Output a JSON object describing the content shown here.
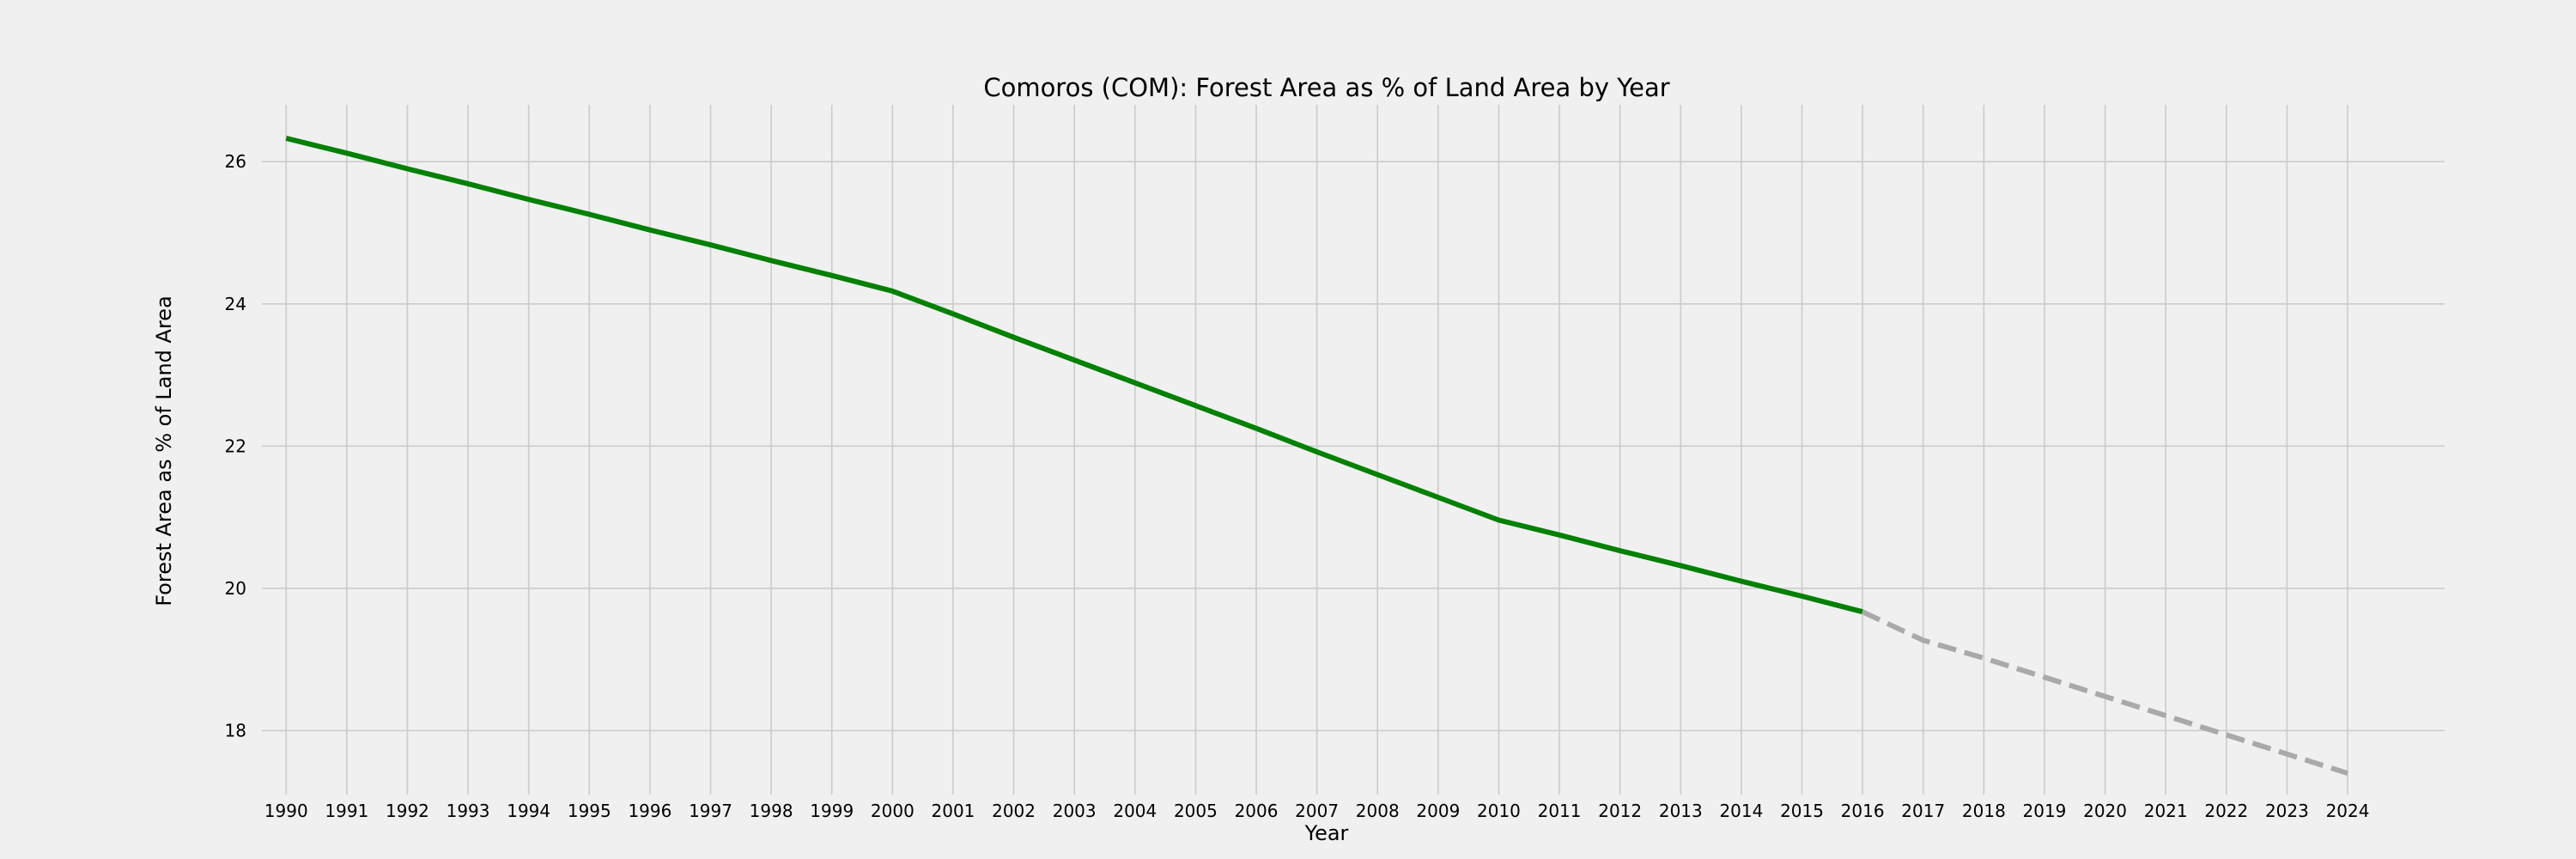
{
  "chart_data": {
    "type": "line",
    "title": "Comoros (COM): Forest Area as % of Land Area by Year",
    "xlabel": "Year",
    "ylabel": "Forest Area as % of Land Area",
    "xlim": [
      1989.6,
      2025.6
    ],
    "ylim": [
      17.1,
      26.8
    ],
    "x_ticks": [
      "1990",
      "1991",
      "1992",
      "1993",
      "1994",
      "1995",
      "1996",
      "1997",
      "1998",
      "1999",
      "2000",
      "2001",
      "2002",
      "2003",
      "2004",
      "2005",
      "2006",
      "2007",
      "2008",
      "2009",
      "2010",
      "2011",
      "2012",
      "2013",
      "2014",
      "2015",
      "2016",
      "2017",
      "2018",
      "2019",
      "2020",
      "2021",
      "2022",
      "2023",
      "2024"
    ],
    "y_ticks": [
      "18",
      "20",
      "22",
      "24",
      "26"
    ],
    "grid": true,
    "colors": {
      "actual": "#008000",
      "forecast": "#a9a9a9",
      "background": "#f0f0f0",
      "grid": "#cbcbcb"
    },
    "series": [
      {
        "style": "solid",
        "x": [
          1990,
          1991,
          1992,
          1993,
          1994,
          1995,
          1996,
          1997,
          1998,
          1999,
          2000,
          2001,
          2002,
          2003,
          2004,
          2005,
          2006,
          2007,
          2008,
          2009,
          2010,
          2011,
          2012,
          2013,
          2014,
          2015,
          2016
        ],
        "y": [
          26.33,
          26.12,
          25.9,
          25.69,
          25.47,
          25.26,
          25.04,
          24.83,
          24.61,
          24.4,
          24.18,
          23.86,
          23.53,
          23.21,
          22.89,
          22.57,
          22.25,
          21.92,
          21.6,
          21.28,
          20.96,
          20.75,
          20.53,
          20.32,
          20.1,
          19.89,
          19.67
        ]
      },
      {
        "style": "dashed",
        "x": [
          2016,
          2017,
          2018,
          2019,
          2020,
          2021,
          2022,
          2023,
          2024
        ],
        "y": [
          19.67,
          19.27,
          19.02,
          18.75,
          18.48,
          18.21,
          17.94,
          17.67,
          17.4
        ]
      }
    ]
  }
}
